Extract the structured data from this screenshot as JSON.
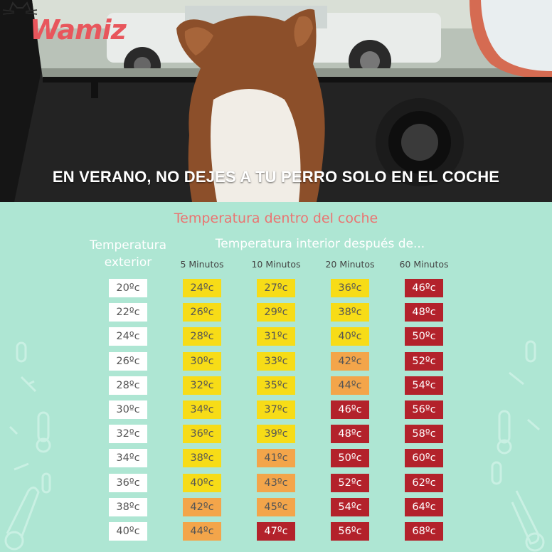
{
  "brand": {
    "logo_text": "Wamiz"
  },
  "headline": "EN VERANO, NO DEJES A TU PERRO SOLO EN EL COCHE",
  "section_title": "Temperatura dentro del coche",
  "exterior_header": {
    "line1": "Temperatura",
    "line2": "exterior"
  },
  "interior_header": "Temperatura interior después de...",
  "columns": [
    "5 Minutos",
    "10 Minutos",
    "20 Minutos",
    "60 Minutos"
  ],
  "colors": {
    "white": "#ffffff",
    "yellow": "#f7dc17",
    "orange": "#f3a54a",
    "red": "#b3222b",
    "background": "#aee6d3",
    "title": "#ea7471"
  },
  "rows": [
    {
      "ext": "20ºc",
      "vals": [
        "24ºc",
        "27ºc",
        "36ºc",
        "46ºc"
      ],
      "levels": [
        "yellow",
        "yellow",
        "yellow",
        "red"
      ]
    },
    {
      "ext": "22ºc",
      "vals": [
        "26ºc",
        "29ºc",
        "38ºc",
        "48ºc"
      ],
      "levels": [
        "yellow",
        "yellow",
        "yellow",
        "red"
      ]
    },
    {
      "ext": "24ºc",
      "vals": [
        "28ºc",
        "31ºc",
        "40ºc",
        "50ºc"
      ],
      "levels": [
        "yellow",
        "yellow",
        "yellow",
        "red"
      ]
    },
    {
      "ext": "26ºc",
      "vals": [
        "30ºc",
        "33ºc",
        "42ºc",
        "52ºc"
      ],
      "levels": [
        "yellow",
        "yellow",
        "orange",
        "red"
      ]
    },
    {
      "ext": "28ºc",
      "vals": [
        "32ºc",
        "35ºc",
        "44ºc",
        "54ºc"
      ],
      "levels": [
        "yellow",
        "yellow",
        "orange",
        "red"
      ]
    },
    {
      "ext": "30ºc",
      "vals": [
        "34ºc",
        "37ºc",
        "46ºc",
        "56ºc"
      ],
      "levels": [
        "yellow",
        "yellow",
        "red",
        "red"
      ]
    },
    {
      "ext": "32ºc",
      "vals": [
        "36ºc",
        "39ºc",
        "48ºc",
        "58ºc"
      ],
      "levels": [
        "yellow",
        "yellow",
        "red",
        "red"
      ]
    },
    {
      "ext": "34ºc",
      "vals": [
        "38ºc",
        "41ºc",
        "50ºc",
        "60ºc"
      ],
      "levels": [
        "yellow",
        "orange",
        "red",
        "red"
      ]
    },
    {
      "ext": "36ºc",
      "vals": [
        "40ºc",
        "43ºc",
        "52ºc",
        "62ºc"
      ],
      "levels": [
        "yellow",
        "orange",
        "red",
        "red"
      ]
    },
    {
      "ext": "38ºc",
      "vals": [
        "42ºc",
        "45ºc",
        "54ºc",
        "64ºc"
      ],
      "levels": [
        "orange",
        "orange",
        "red",
        "red"
      ]
    },
    {
      "ext": "40ºc",
      "vals": [
        "44ºc",
        "47ºc",
        "56ºc",
        "68ºc"
      ],
      "levels": [
        "orange",
        "red",
        "red",
        "red"
      ]
    }
  ]
}
